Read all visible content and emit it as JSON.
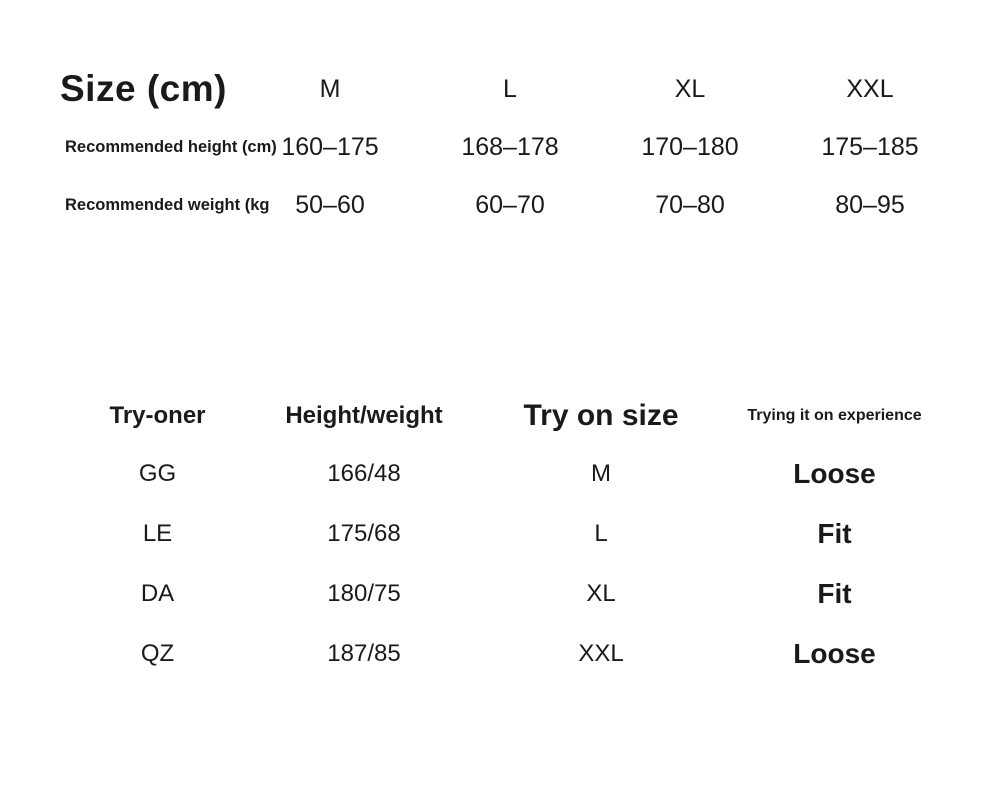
{
  "colors": {
    "background": "#ffffff",
    "text": "#1a1a1a"
  },
  "size_table": {
    "title": "Size (cm)",
    "columns": [
      "M",
      "L",
      "XL",
      "XXL"
    ],
    "rows": [
      {
        "label": "Recommended height (cm)",
        "values": [
          "160–175",
          "168–178",
          "170–180",
          "175–185"
        ]
      },
      {
        "label": "Recommended weight (kg",
        "values": [
          "50–60",
          "60–70",
          "70–80",
          "80–95"
        ]
      }
    ]
  },
  "try_on_table": {
    "columns": [
      "Try-oner",
      "Height/weight",
      "Try on size",
      "Trying it on experience"
    ],
    "rows": [
      {
        "tryoner": "GG",
        "height_weight": "166/48",
        "try_on_size": "M",
        "experience": "Loose"
      },
      {
        "tryoner": "LE",
        "height_weight": "175/68",
        "try_on_size": "L",
        "experience": "Fit"
      },
      {
        "tryoner": "DA",
        "height_weight": "180/75",
        "try_on_size": "XL",
        "experience": "Fit"
      },
      {
        "tryoner": "QZ",
        "height_weight": "187/85",
        "try_on_size": "XXL",
        "experience": "Loose"
      }
    ]
  }
}
